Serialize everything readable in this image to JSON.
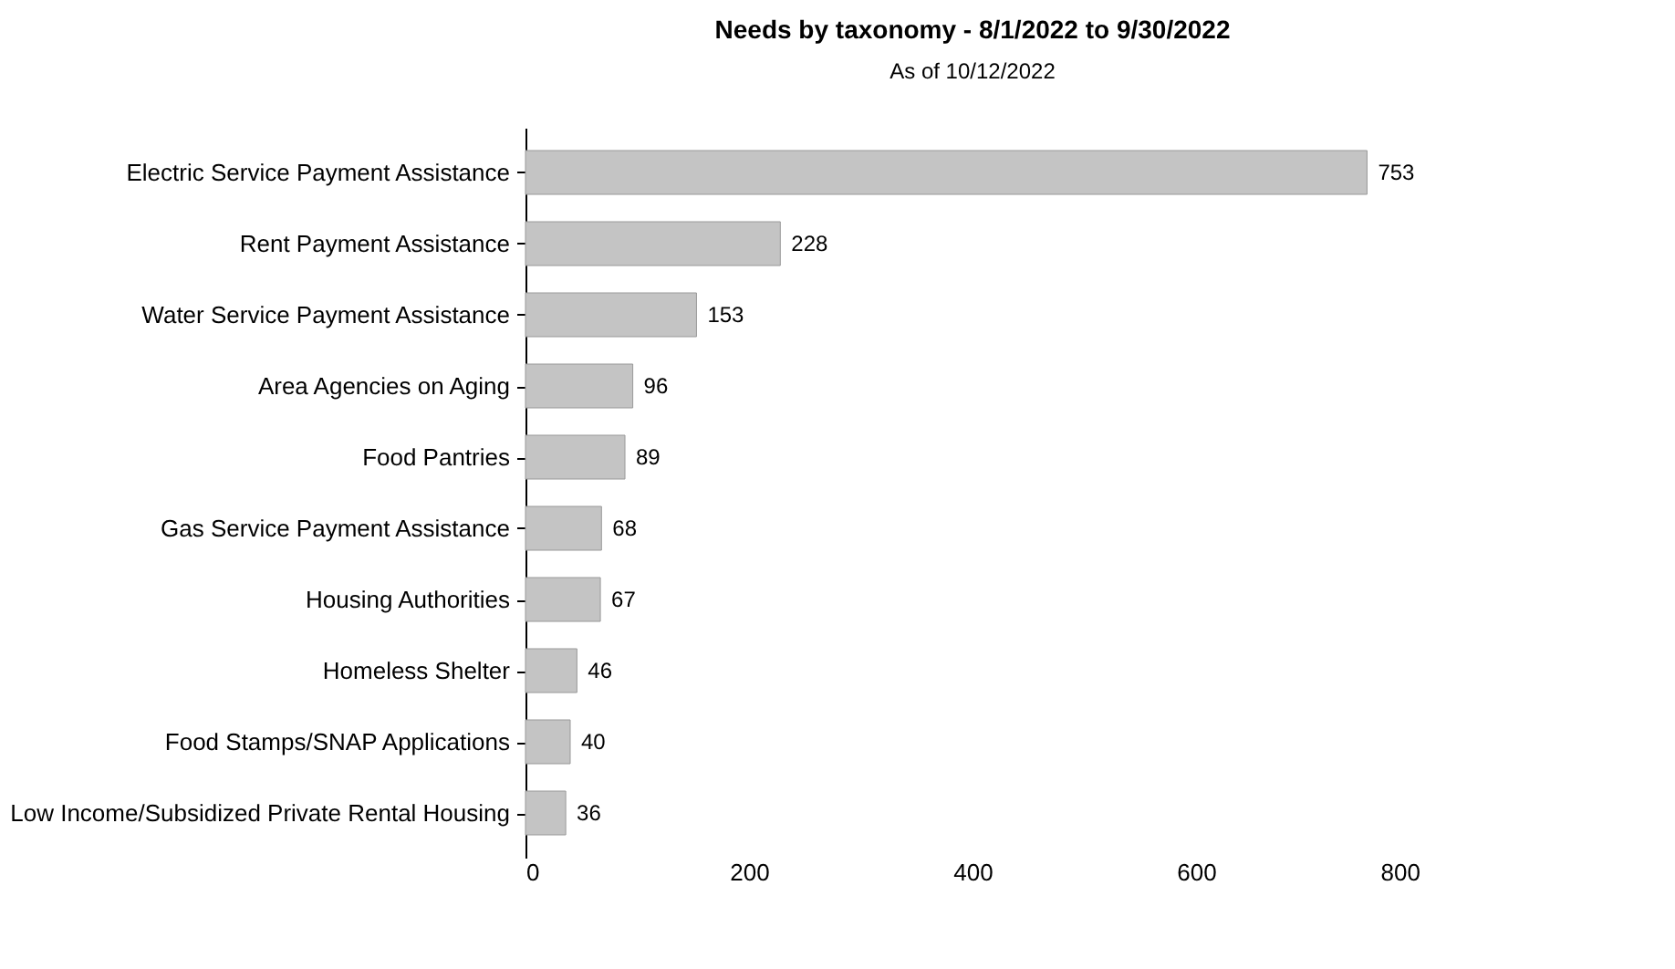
{
  "chart_data": {
    "type": "bar",
    "orientation": "horizontal",
    "title": "Needs by taxonomy - 8/1/2022 to 9/30/2022",
    "subtitle": "As of 10/12/2022",
    "categories": [
      "Electric Service Payment Assistance",
      "Rent Payment Assistance",
      "Water Service Payment Assistance",
      "Area Agencies on Aging",
      "Food Pantries",
      "Gas Service Payment Assistance",
      "Housing Authorities",
      "Homeless Shelter",
      "Food Stamps/SNAP Applications",
      "Low Income/Subsidized Private Rental Housing"
    ],
    "values": [
      753,
      228,
      153,
      96,
      89,
      68,
      67,
      46,
      40,
      36
    ],
    "color": "#c4c4c4",
    "xlim": [
      0,
      800
    ],
    "xticks": [
      0,
      200,
      400,
      600,
      800
    ],
    "data_labels": true,
    "grid": false
  }
}
